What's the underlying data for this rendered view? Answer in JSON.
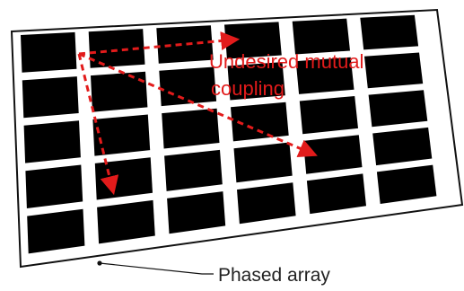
{
  "annotation": {
    "line1": "Undesired mutual",
    "line2": "coupling",
    "color": "#e21b1b"
  },
  "caption": {
    "label": "Phased array"
  },
  "array": {
    "rows": 5,
    "columns": 6,
    "element_color": "#000000",
    "substrate_color": "#ffffff"
  }
}
